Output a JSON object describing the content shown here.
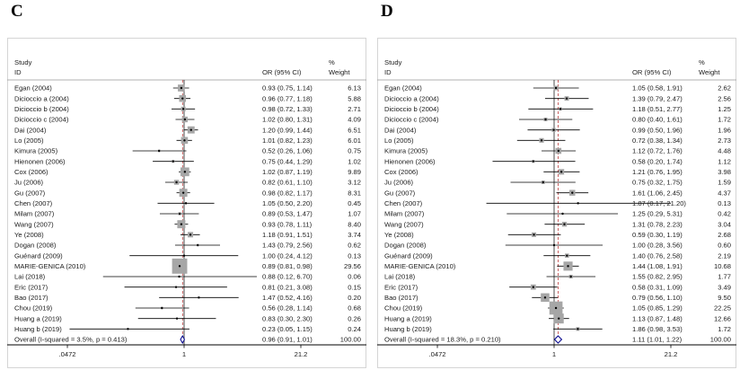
{
  "style": {
    "square_color": "#a6a6a6",
    "ci_color": "#000000",
    "diamond_color": "#00008b",
    "pooled_line_color": "#b22222",
    "null_line_color": "#000000",
    "text_color": "#1a1a1a",
    "border_color": "#d5d5d5",
    "header_line_color": "#999999",
    "axis_color": "#000000"
  },
  "chart_data": [
    {
      "type": "forest",
      "panel_label": "C",
      "x_scale": "log",
      "x_ticks": [
        0.0472,
        1,
        21.2
      ],
      "x_tick_labels": [
        ".0472",
        "1",
        "21.2"
      ],
      "null_value": 1,
      "columns": {
        "study_line1": "Study",
        "study_line2": "ID",
        "or": "OR (95% CI)",
        "weight_line1": "%",
        "weight_line2": "Weight"
      },
      "studies": [
        {
          "id": "Egan (2004)",
          "or": 0.93,
          "ci": [
            0.75,
            1.14
          ],
          "weight": 6.13
        },
        {
          "id": "Dicioccio a (2004)",
          "or": 0.96,
          "ci": [
            0.77,
            1.18
          ],
          "weight": 5.88
        },
        {
          "id": "Dicioccio b (2004)",
          "or": 0.98,
          "ci": [
            0.72,
            1.33
          ],
          "weight": 2.71
        },
        {
          "id": "Dicioccio c (2004)",
          "or": 1.02,
          "ci": [
            0.8,
            1.31
          ],
          "weight": 4.09
        },
        {
          "id": "Dai (2004)",
          "or": 1.2,
          "ci": [
            0.99,
            1.44
          ],
          "weight": 6.51
        },
        {
          "id": "Lo (2005)",
          "or": 1.01,
          "ci": [
            0.82,
            1.23
          ],
          "weight": 6.01
        },
        {
          "id": "Kimura (2005)",
          "or": 0.52,
          "ci": [
            0.26,
            1.06
          ],
          "weight": 0.75
        },
        {
          "id": "Hienonen (2006)",
          "or": 0.75,
          "ci": [
            0.44,
            1.29
          ],
          "weight": 1.02
        },
        {
          "id": "Cox (2006)",
          "or": 1.02,
          "ci": [
            0.87,
            1.19
          ],
          "weight": 9.89
        },
        {
          "id": "Ju (2006)",
          "or": 0.82,
          "ci": [
            0.61,
            1.1
          ],
          "weight": 3.12
        },
        {
          "id": "Gu (2007)",
          "or": 0.98,
          "ci": [
            0.82,
            1.17
          ],
          "weight": 8.31
        },
        {
          "id": "Chen (2007)",
          "or": 1.05,
          "ci": [
            0.5,
            2.2
          ],
          "weight": 0.45
        },
        {
          "id": "Milam (2007)",
          "or": 0.89,
          "ci": [
            0.53,
            1.47
          ],
          "weight": 1.07
        },
        {
          "id": "Wang (2007)",
          "or": 0.93,
          "ci": [
            0.78,
            1.11
          ],
          "weight": 8.4
        },
        {
          "id": "Ye (2008)",
          "or": 1.18,
          "ci": [
            0.91,
            1.51
          ],
          "weight": 3.74
        },
        {
          "id": "Dogan (2008)",
          "or": 1.43,
          "ci": [
            0.79,
            2.56
          ],
          "weight": 0.62
        },
        {
          "id": "Guénard (2009)",
          "or": 1.0,
          "ci": [
            0.24,
            4.12
          ],
          "weight": 0.13
        },
        {
          "id": "MARIE-GENICA (2010)",
          "or": 0.89,
          "ci": [
            0.81,
            0.98
          ],
          "weight": 29.56
        },
        {
          "id": "Lai (2018)",
          "or": 0.88,
          "ci": [
            0.12,
            6.7
          ],
          "weight": 0.06
        },
        {
          "id": "Eric (2017)",
          "or": 0.81,
          "ci": [
            0.21,
            3.08
          ],
          "weight": 0.15
        },
        {
          "id": "Bao (2017)",
          "or": 1.47,
          "ci": [
            0.52,
            4.16
          ],
          "weight": 0.2
        },
        {
          "id": "Chou (2019)",
          "or": 0.56,
          "ci": [
            0.28,
            1.14
          ],
          "weight": 0.68
        },
        {
          "id": "Huang a (2019)",
          "or": 0.83,
          "ci": [
            0.3,
            2.3
          ],
          "weight": 0.26
        },
        {
          "id": "Huang b (2019)",
          "or": 0.23,
          "ci": [
            0.05,
            1.15
          ],
          "weight": 0.24
        }
      ],
      "overall": {
        "id": "Overall (I-squared = 3.5%, p = 0.413)",
        "or": 0.96,
        "ci": [
          0.91,
          1.01
        ],
        "weight": 100.0
      }
    },
    {
      "type": "forest",
      "panel_label": "D",
      "x_scale": "log",
      "x_ticks": [
        0.0472,
        1,
        21.2
      ],
      "x_tick_labels": [
        ".0472",
        "1",
        "21.2"
      ],
      "null_value": 1,
      "columns": {
        "study_line1": "Study",
        "study_line2": "ID",
        "or": "OR (95% CI)",
        "weight_line1": "%",
        "weight_line2": "Weight"
      },
      "studies": [
        {
          "id": "Egan (2004)",
          "or": 1.05,
          "ci": [
            0.58,
            1.91
          ],
          "weight": 2.62
        },
        {
          "id": "Dicioccio a (2004)",
          "or": 1.39,
          "ci": [
            0.79,
            2.47
          ],
          "weight": 2.56
        },
        {
          "id": "Dicioccio b (2004)",
          "or": 1.18,
          "ci": [
            0.51,
            2.77
          ],
          "weight": 1.25
        },
        {
          "id": "Dicioccio c (2004)",
          "or": 0.8,
          "ci": [
            0.4,
            1.61
          ],
          "weight": 1.72
        },
        {
          "id": "Dai (2004)",
          "or": 0.99,
          "ci": [
            0.5,
            1.96
          ],
          "weight": 1.96
        },
        {
          "id": "Lo (2005)",
          "or": 0.72,
          "ci": [
            0.38,
            1.34
          ],
          "weight": 2.73
        },
        {
          "id": "Kimura (2005)",
          "or": 1.12,
          "ci": [
            0.72,
            1.76
          ],
          "weight": 4.48
        },
        {
          "id": "Hienonen (2006)",
          "or": 0.58,
          "ci": [
            0.2,
            1.74
          ],
          "weight": 1.12
        },
        {
          "id": "Cox (2006)",
          "or": 1.21,
          "ci": [
            0.76,
            1.95
          ],
          "weight": 3.98
        },
        {
          "id": "Ju (2006)",
          "or": 0.75,
          "ci": [
            0.32,
            1.75
          ],
          "weight": 1.59
        },
        {
          "id": "Gu (2007)",
          "or": 1.61,
          "ci": [
            1.06,
            2.45
          ],
          "weight": 4.37
        },
        {
          "id": "Chen (2007)",
          "or": 1.87,
          "ci": [
            0.17,
            21.2
          ],
          "weight": 0.13
        },
        {
          "id": "Milam (2007)",
          "or": 1.25,
          "ci": [
            0.29,
            5.31
          ],
          "weight": 0.42
        },
        {
          "id": "Wang (2007)",
          "or": 1.31,
          "ci": [
            0.78,
            2.23
          ],
          "weight": 3.04
        },
        {
          "id": "Ye (2008)",
          "or": 0.59,
          "ci": [
            0.3,
            1.19
          ],
          "weight": 2.68
        },
        {
          "id": "Dogan (2008)",
          "or": 1.0,
          "ci": [
            0.28,
            3.56
          ],
          "weight": 0.6
        },
        {
          "id": "Guénard (2009)",
          "or": 1.4,
          "ci": [
            0.76,
            2.58
          ],
          "weight": 2.19
        },
        {
          "id": "MARIE-GENICA (2010)",
          "or": 1.44,
          "ci": [
            1.08,
            1.91
          ],
          "weight": 10.68
        },
        {
          "id": "Lai (2018)",
          "or": 1.55,
          "ci": [
            0.82,
            2.95
          ],
          "weight": 1.77
        },
        {
          "id": "Eric (2017)",
          "or": 0.58,
          "ci": [
            0.31,
            1.09
          ],
          "weight": 3.49
        },
        {
          "id": "Bao (2017)",
          "or": 0.79,
          "ci": [
            0.56,
            1.1
          ],
          "weight": 9.5
        },
        {
          "id": "Chou (2019)",
          "or": 1.05,
          "ci": [
            0.85,
            1.29
          ],
          "weight": 22.25
        },
        {
          "id": "Huang a (2019)",
          "or": 1.13,
          "ci": [
            0.87,
            1.48
          ],
          "weight": 12.66
        },
        {
          "id": "Huang b (2019)",
          "or": 1.86,
          "ci": [
            0.98,
            3.53
          ],
          "weight": 1.72
        }
      ],
      "overall": {
        "id": "Overall (I-squared = 18.3%, p = 0.210)",
        "or": 1.11,
        "ci": [
          1.01,
          1.22
        ],
        "weight": 100.0
      }
    }
  ]
}
